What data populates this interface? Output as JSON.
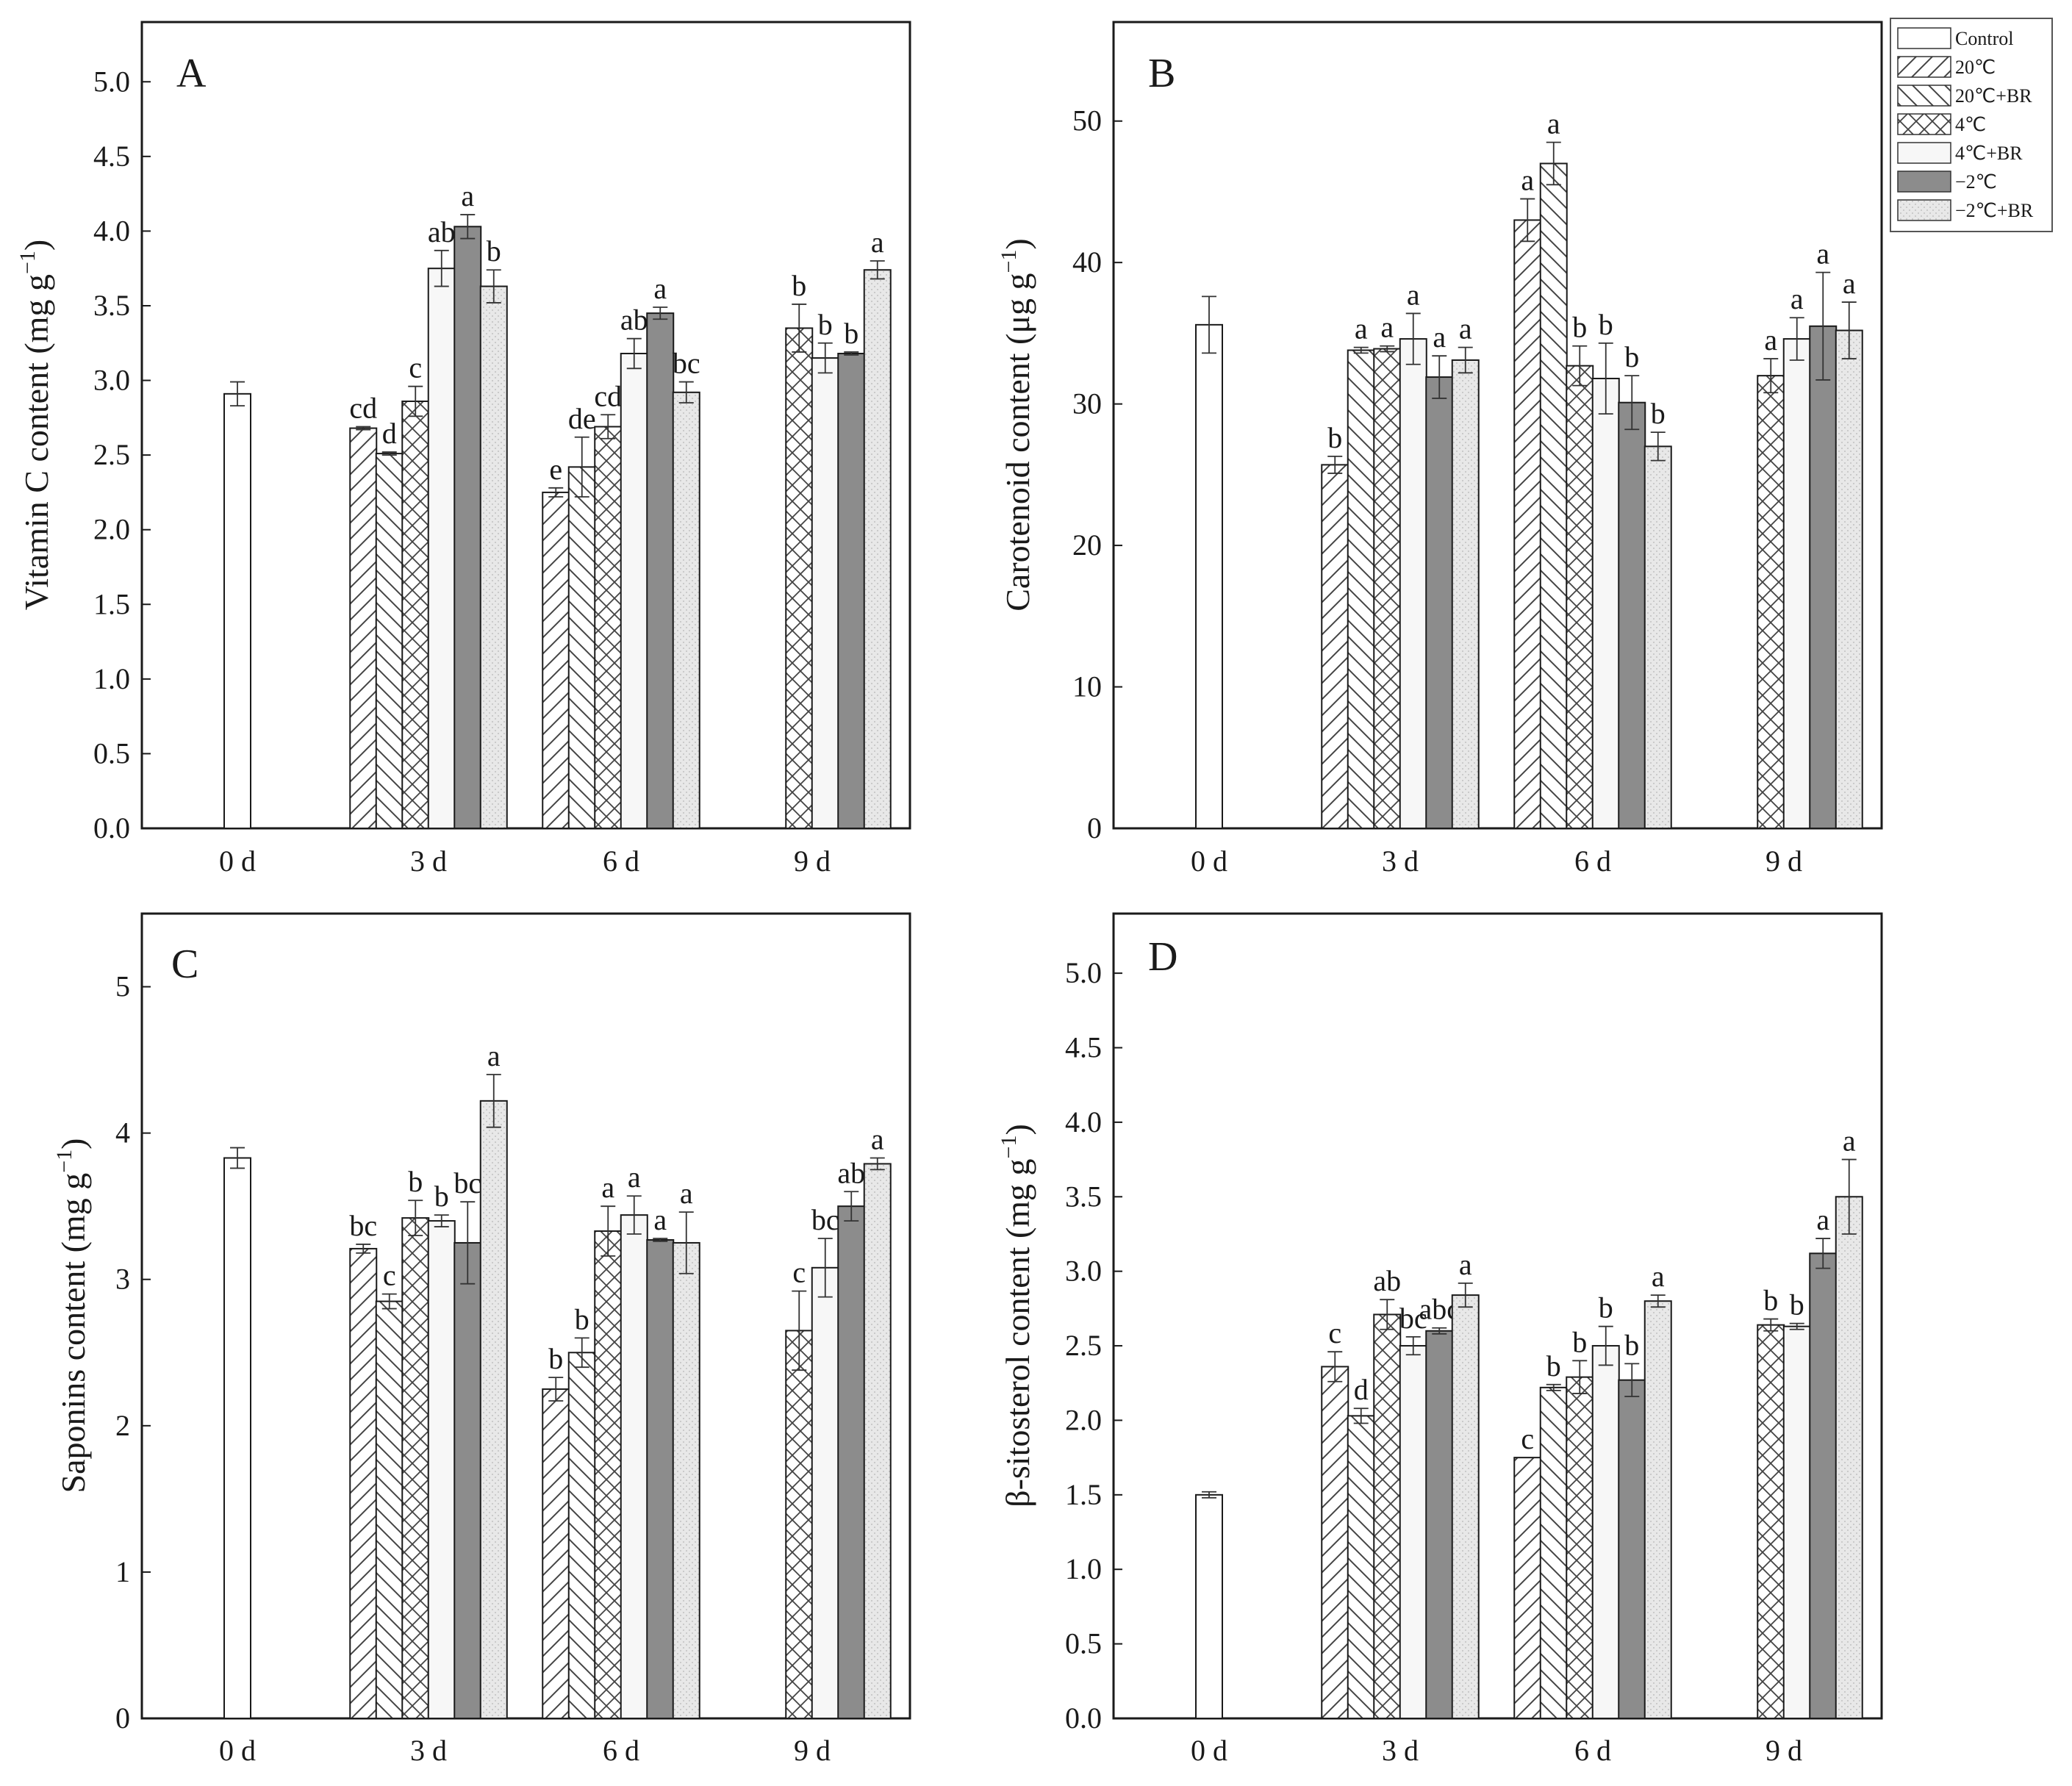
{
  "legend": [
    "Control",
    "20℃",
    "20℃+BR",
    "4℃",
    "4℃+BR",
    "−2℃",
    "−2℃+BR"
  ],
  "series_style": [
    {
      "fill": "#ffffff",
      "pattern": "none"
    },
    {
      "fill": "#ffffff",
      "pattern": "fwd"
    },
    {
      "fill": "#ffffff",
      "pattern": "back"
    },
    {
      "fill": "#ffffff",
      "pattern": "cross"
    },
    {
      "fill": "#f7f7f7",
      "pattern": "none"
    },
    {
      "fill": "#8c8c8c",
      "pattern": "none"
    },
    {
      "fill": "#e6e6e6",
      "pattern": "dots"
    }
  ],
  "chart_data": [
    {
      "type": "bar",
      "title": "A",
      "ylabel": "Vitamin C content",
      "yunit_base": "mg g",
      "yunit_exp": "−1",
      "categories": [
        "0 d",
        "3 d",
        "6 d",
        "9 d"
      ],
      "ylim": [
        0,
        5.4
      ],
      "yticks": [
        0.0,
        0.5,
        1.0,
        1.5,
        2.0,
        2.5,
        3.0,
        3.5,
        4.0,
        4.5,
        5.0
      ],
      "tick_decimals": 1,
      "groups": [
        [
          {
            "s": 0,
            "v": 2.91,
            "e": 0.08,
            "l": ""
          }
        ],
        [
          {
            "s": 1,
            "v": 2.68,
            "e": 0.01,
            "l": "cd"
          },
          {
            "s": 2,
            "v": 2.51,
            "e": 0.01,
            "l": "d"
          },
          {
            "s": 3,
            "v": 2.86,
            "e": 0.1,
            "l": "c"
          },
          {
            "s": 4,
            "v": 3.75,
            "e": 0.12,
            "l": "ab"
          },
          {
            "s": 5,
            "v": 4.03,
            "e": 0.08,
            "l": "a"
          },
          {
            "s": 6,
            "v": 3.63,
            "e": 0.11,
            "l": "b"
          }
        ],
        [
          {
            "s": 1,
            "v": 2.25,
            "e": 0.03,
            "l": "e"
          },
          {
            "s": 2,
            "v": 2.42,
            "e": 0.2,
            "l": "de"
          },
          {
            "s": 3,
            "v": 2.69,
            "e": 0.08,
            "l": "cd"
          },
          {
            "s": 4,
            "v": 3.18,
            "e": 0.1,
            "l": "ab"
          },
          {
            "s": 5,
            "v": 3.45,
            "e": 0.04,
            "l": "a"
          },
          {
            "s": 6,
            "v": 2.92,
            "e": 0.07,
            "l": "bc"
          }
        ],
        [
          {
            "s": 3,
            "v": 3.35,
            "e": 0.16,
            "l": "b"
          },
          {
            "s": 4,
            "v": 3.15,
            "e": 0.1,
            "l": "b"
          },
          {
            "s": 5,
            "v": 3.18,
            "e": 0.01,
            "l": "b"
          },
          {
            "s": 6,
            "v": 3.74,
            "e": 0.06,
            "l": "a"
          }
        ]
      ]
    },
    {
      "type": "bar",
      "title": "B",
      "ylabel": "Carotenoid content",
      "yunit_base": "μg g",
      "yunit_exp": "−1",
      "categories": [
        "0 d",
        "3 d",
        "6 d",
        "9 d"
      ],
      "ylim": [
        0,
        57
      ],
      "yticks": [
        0,
        10,
        20,
        30,
        40,
        50
      ],
      "tick_decimals": 0,
      "groups": [
        [
          {
            "s": 0,
            "v": 35.6,
            "e": 2.0,
            "l": ""
          }
        ],
        [
          {
            "s": 1,
            "v": 25.7,
            "e": 0.6,
            "l": "b"
          },
          {
            "s": 2,
            "v": 33.8,
            "e": 0.2,
            "l": "a"
          },
          {
            "s": 3,
            "v": 33.9,
            "e": 0.2,
            "l": "a"
          },
          {
            "s": 4,
            "v": 34.6,
            "e": 1.8,
            "l": "a"
          },
          {
            "s": 5,
            "v": 31.9,
            "e": 1.5,
            "l": "a"
          },
          {
            "s": 6,
            "v": 33.1,
            "e": 0.9,
            "l": "a"
          }
        ],
        [
          {
            "s": 1,
            "v": 43.0,
            "e": 1.5,
            "l": "a"
          },
          {
            "s": 2,
            "v": 47.0,
            "e": 1.5,
            "l": "a"
          },
          {
            "s": 3,
            "v": 32.7,
            "e": 1.4,
            "l": "b"
          },
          {
            "s": 4,
            "v": 31.8,
            "e": 2.5,
            "l": "b"
          },
          {
            "s": 5,
            "v": 30.1,
            "e": 1.9,
            "l": "b"
          },
          {
            "s": 6,
            "v": 27.0,
            "e": 1.0,
            "l": "b"
          }
        ],
        [
          {
            "s": 3,
            "v": 32.0,
            "e": 1.2,
            "l": "a"
          },
          {
            "s": 4,
            "v": 34.6,
            "e": 1.5,
            "l": "a"
          },
          {
            "s": 5,
            "v": 35.5,
            "e": 3.8,
            "l": "a"
          },
          {
            "s": 6,
            "v": 35.2,
            "e": 2.0,
            "l": "a"
          }
        ]
      ]
    },
    {
      "type": "bar",
      "title": "C",
      "ylabel": "Saponins content",
      "yunit_base": "mg g",
      "yunit_exp": "−1",
      "categories": [
        "0 d",
        "3 d",
        "6 d",
        "9 d"
      ],
      "ylim": [
        0,
        5.5
      ],
      "yticks": [
        0,
        1,
        2,
        3,
        4,
        5
      ],
      "tick_decimals": 0,
      "groups": [
        [
          {
            "s": 0,
            "v": 3.83,
            "e": 0.07,
            "l": ""
          }
        ],
        [
          {
            "s": 1,
            "v": 3.21,
            "e": 0.03,
            "l": "bc"
          },
          {
            "s": 2,
            "v": 2.85,
            "e": 0.05,
            "l": "c"
          },
          {
            "s": 3,
            "v": 3.42,
            "e": 0.12,
            "l": "b"
          },
          {
            "s": 4,
            "v": 3.4,
            "e": 0.04,
            "l": "b"
          },
          {
            "s": 5,
            "v": 3.25,
            "e": 0.28,
            "l": "bc"
          },
          {
            "s": 6,
            "v": 4.22,
            "e": 0.18,
            "l": "a"
          }
        ],
        [
          {
            "s": 1,
            "v": 2.25,
            "e": 0.08,
            "l": "b"
          },
          {
            "s": 2,
            "v": 2.5,
            "e": 0.1,
            "l": "b"
          },
          {
            "s": 3,
            "v": 3.33,
            "e": 0.17,
            "l": "a"
          },
          {
            "s": 4,
            "v": 3.44,
            "e": 0.13,
            "l": "a"
          },
          {
            "s": 5,
            "v": 3.27,
            "e": 0.01,
            "l": "a"
          },
          {
            "s": 6,
            "v": 3.25,
            "e": 0.21,
            "l": "a"
          }
        ],
        [
          {
            "s": 3,
            "v": 2.65,
            "e": 0.27,
            "l": "c"
          },
          {
            "s": 4,
            "v": 3.08,
            "e": 0.2,
            "l": "bc"
          },
          {
            "s": 5,
            "v": 3.5,
            "e": 0.1,
            "l": "ab"
          },
          {
            "s": 6,
            "v": 3.79,
            "e": 0.04,
            "l": "a"
          }
        ]
      ]
    },
    {
      "type": "bar",
      "title": "D",
      "ylabel": "β-sitosterol content",
      "yunit_base": "mg g",
      "yunit_exp": "−1",
      "categories": [
        "0 d",
        "3 d",
        "6 d",
        "9 d"
      ],
      "ylim": [
        0,
        5.4
      ],
      "yticks": [
        0.0,
        0.5,
        1.0,
        1.5,
        2.0,
        2.5,
        3.0,
        3.5,
        4.0,
        4.5,
        5.0
      ],
      "tick_decimals": 1,
      "groups": [
        [
          {
            "s": 0,
            "v": 1.5,
            "e": 0.02,
            "l": ""
          }
        ],
        [
          {
            "s": 1,
            "v": 2.36,
            "e": 0.1,
            "l": "c"
          },
          {
            "s": 2,
            "v": 2.03,
            "e": 0.05,
            "l": "d"
          },
          {
            "s": 3,
            "v": 2.71,
            "e": 0.1,
            "l": "ab"
          },
          {
            "s": 4,
            "v": 2.5,
            "e": 0.06,
            "l": "bc"
          },
          {
            "s": 5,
            "v": 2.6,
            "e": 0.02,
            "l": "abc"
          },
          {
            "s": 6,
            "v": 2.84,
            "e": 0.08,
            "l": "a"
          }
        ],
        [
          {
            "s": 1,
            "v": 1.75,
            "e": 0.0,
            "l": "c"
          },
          {
            "s": 2,
            "v": 2.22,
            "e": 0.02,
            "l": "b"
          },
          {
            "s": 3,
            "v": 2.29,
            "e": 0.11,
            "l": "b"
          },
          {
            "s": 4,
            "v": 2.5,
            "e": 0.13,
            "l": "b"
          },
          {
            "s": 5,
            "v": 2.27,
            "e": 0.11,
            "l": "b"
          },
          {
            "s": 6,
            "v": 2.8,
            "e": 0.04,
            "l": "a"
          }
        ],
        [
          {
            "s": 3,
            "v": 2.64,
            "e": 0.04,
            "l": "b"
          },
          {
            "s": 4,
            "v": 2.63,
            "e": 0.02,
            "l": "b"
          },
          {
            "s": 5,
            "v": 3.12,
            "e": 0.1,
            "l": "a"
          },
          {
            "s": 6,
            "v": 3.5,
            "e": 0.25,
            "l": "a"
          }
        ]
      ]
    }
  ]
}
